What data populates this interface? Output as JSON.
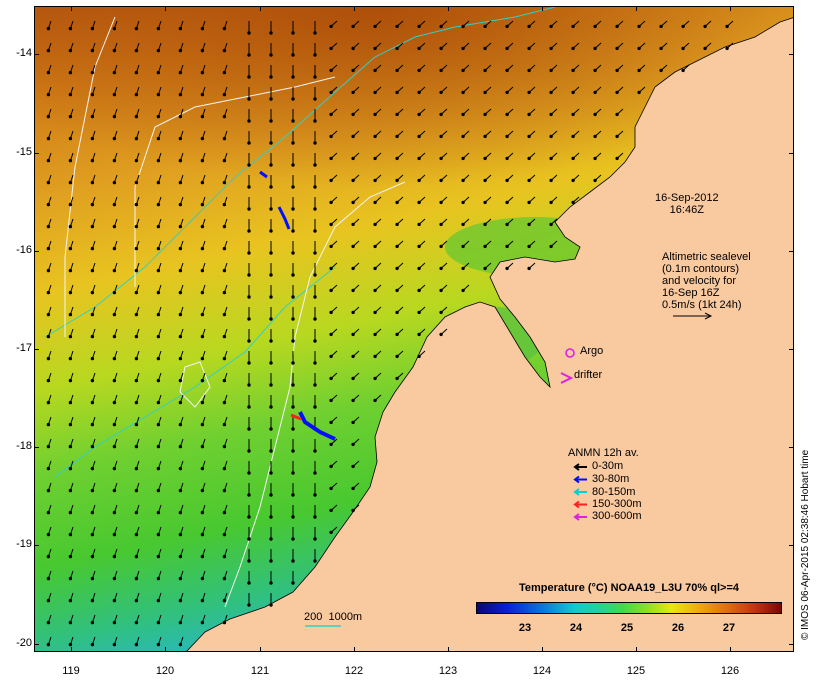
{
  "map": {
    "y_axis_labels": [
      "-14",
      "-15",
      "-16",
      "-17",
      "-18",
      "-19",
      "-20"
    ],
    "x_axis_labels": [
      "119",
      "120",
      "121",
      "122",
      "123",
      "124",
      "125",
      "126"
    ],
    "date_stamp": "16-Sep-2012\n16:46Z",
    "altimetry_info": "Altimetric sealevel\n(0.1m contours)\nand velocity for\n16-Sep 16Z\n0.5m/s (1kt 24h)",
    "markers": {
      "argo_label": "Argo",
      "drifter_label": "drifter",
      "argo_color": "#e020e0",
      "drifter_color": "#e020e0"
    },
    "anmn_legend": {
      "title": "ANMN 12h av.",
      "items": [
        {
          "label": "0-30m",
          "color": "#000000"
        },
        {
          "label": "30-80m",
          "color": "#0010ff"
        },
        {
          "label": "80-150m",
          "color": "#00d0d0"
        },
        {
          "label": "150-300m",
          "color": "#ff2020"
        },
        {
          "label": "300-600m",
          "color": "#e020e0"
        }
      ]
    },
    "scale_label": "200  1000m",
    "colorbar": {
      "title": "Temperature (°C) NOAA19_L3U 70% ql>=4",
      "tick_labels": [
        "23",
        "24",
        "25",
        "26",
        "27"
      ],
      "range": [
        22,
        28
      ]
    },
    "copyright": "© IMOS 06-Apr-2015 02:38:46 Hobart time",
    "colors": {
      "land": "#f9c9a0",
      "warm_sea": "#d8881c",
      "mid_sea": "#e8c020",
      "cool_sea": "#7cd030",
      "coldest_sea": "#30c0a0",
      "isobath": "#2fd0c8"
    }
  }
}
